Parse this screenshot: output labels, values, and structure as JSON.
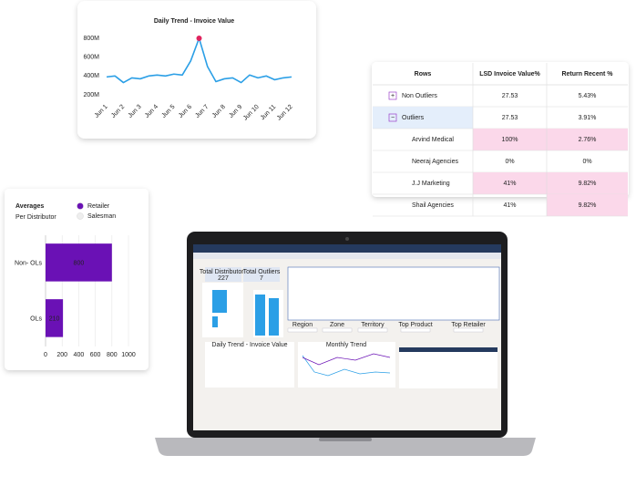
{
  "chart_data": [
    {
      "type": "line",
      "title": "Daily Trend - Invoice Value",
      "categories": [
        "Jun 1",
        null,
        "Jun 2",
        null,
        "Jun 3",
        null,
        "Jun 4",
        null,
        "Jun 5",
        null,
        "Jun 6",
        null,
        "Jun 7",
        null,
        "Jun 8",
        null,
        "Jun 9",
        null,
        "Jun 10",
        null,
        "Jun 11",
        null,
        "Jun 12"
      ],
      "values": [
        390,
        400,
        330,
        380,
        370,
        400,
        410,
        400,
        420,
        410,
        560,
        800,
        500,
        340,
        370,
        380,
        330,
        410,
        380,
        400,
        360,
        380,
        390
      ],
      "color": "#2b9fe6",
      "peak_color": "#e0245e",
      "ylim": [
        200,
        800
      ],
      "yticks": [
        {
          "value": 200,
          "label": "200M"
        },
        {
          "value": 400,
          "label": "400M"
        },
        {
          "value": 600,
          "label": "600M"
        },
        {
          "value": 800,
          "label": "800M"
        }
      ]
    },
    {
      "type": "hbar",
      "title": "Averages",
      "subtitle": "Per Distributor",
      "categories": [
        "Non- OLs",
        "OLs"
      ],
      "series": [
        {
          "name": "Retailer",
          "color": "#6a11b5",
          "values": [
            800,
            210
          ]
        },
        {
          "name": "Salesman",
          "color": "#eeeeee",
          "values": [
            null,
            null
          ]
        }
      ],
      "xlim": [
        0,
        1000
      ],
      "xticks": [
        0,
        200,
        400,
        600,
        800,
        1000
      ],
      "grid": true
    }
  ],
  "table": {
    "columns": [
      "Rows",
      "LSD Invoice Value%",
      "Return Recent %"
    ],
    "rows": [
      {
        "cells": [
          "Non Outliers",
          "27.53",
          "5.43%"
        ],
        "expander": "+",
        "highlight": [
          false,
          false,
          false
        ]
      },
      {
        "cells": [
          "Outliers",
          "27.53",
          "3.91%"
        ],
        "expander": "−",
        "highlight": [
          false,
          false,
          false
        ],
        "selected": true
      },
      {
        "cells": [
          "Arvind Medical",
          "100%",
          "2.76%"
        ],
        "highlight": [
          false,
          true,
          true
        ]
      },
      {
        "cells": [
          "Neeraj Agencies",
          "0%",
          "0%"
        ],
        "highlight": [
          false,
          false,
          false
        ]
      },
      {
        "cells": [
          "J.J Marketing",
          "41%",
          "9.82%"
        ],
        "highlight": [
          false,
          true,
          true
        ]
      },
      {
        "cells": [
          "Shail Agencies",
          "41%",
          "9.82%"
        ],
        "highlight": [
          false,
          false,
          true
        ]
      }
    ]
  },
  "laptop_screen": {
    "cards": [
      {
        "title": "Total Distributors",
        "value": "227"
      },
      {
        "title": "Total Outliers",
        "value": "7"
      }
    ],
    "filters": [
      "Region",
      "Zone",
      "Territory",
      "Top Product",
      "Top Retailer"
    ],
    "panels": [
      "Daily Trend - Invoice Value",
      "Monthly Trend"
    ]
  }
}
